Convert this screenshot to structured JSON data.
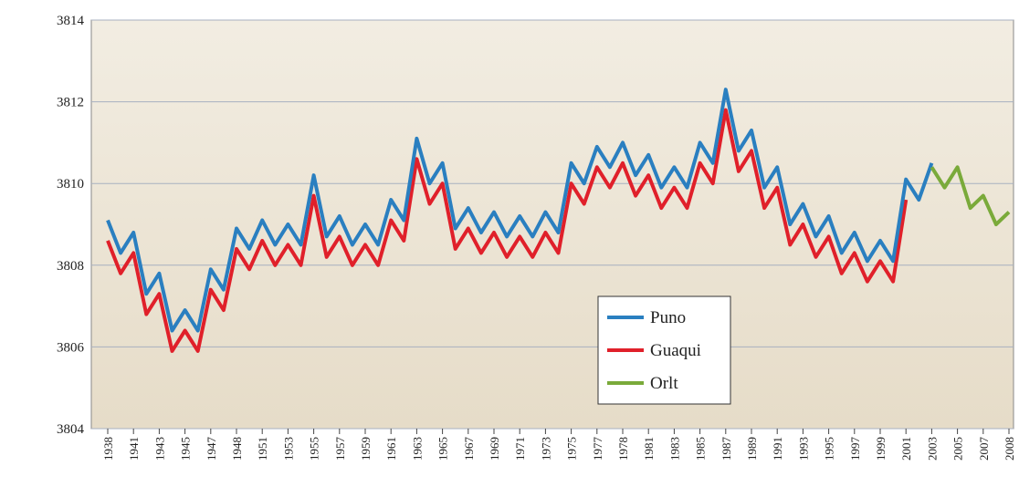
{
  "chart_data": {
    "type": "line",
    "categories": [
      "1938",
      null,
      "1941",
      null,
      "1943",
      null,
      "1945",
      null,
      "1947",
      null,
      "1948",
      null,
      "1951",
      null,
      "1953",
      null,
      "1955",
      null,
      "1957",
      null,
      "1959",
      null,
      "1961",
      null,
      "1963",
      null,
      "1965",
      null,
      "1967",
      null,
      "1969",
      null,
      "1971",
      null,
      "1973",
      null,
      "1975",
      null,
      "1977",
      null,
      "1978",
      null,
      "1981",
      null,
      "1983",
      null,
      "1985",
      null,
      "1987",
      null,
      "1989",
      null,
      "1991",
      null,
      "1993",
      null,
      "1995",
      null,
      "1997",
      null,
      "1999",
      null,
      "2001",
      null,
      "2003",
      null,
      "2005",
      null,
      "2007",
      null,
      "2008"
    ],
    "series": [
      {
        "name": "Puno",
        "color": "#2a7fc0",
        "values": [
          3809.1,
          3808.3,
          3808.8,
          3807.3,
          3807.8,
          3806.4,
          3806.9,
          3806.4,
          3807.9,
          3807.4,
          3808.9,
          3808.4,
          3809.1,
          3808.5,
          3809.0,
          3808.5,
          3810.2,
          3808.7,
          3809.2,
          3808.5,
          3809.0,
          3808.5,
          3809.6,
          3809.1,
          3811.1,
          3810.0,
          3810.5,
          3808.9,
          3809.4,
          3808.8,
          3809.3,
          3808.7,
          3809.2,
          3808.7,
          3809.3,
          3808.8,
          3810.5,
          3810.0,
          3810.9,
          3810.4,
          3811.0,
          3810.2,
          3810.7,
          3809.9,
          3810.4,
          3809.9,
          3811.0,
          3810.5,
          3812.3,
          3810.8,
          3811.3,
          3809.9,
          3810.4,
          3809.0,
          3809.5,
          3808.7,
          3809.2,
          3808.3,
          3808.8,
          3808.1,
          3808.6,
          3808.1,
          3810.1,
          3809.6,
          3810.5,
          null,
          null,
          null,
          null,
          null,
          null
        ]
      },
      {
        "name": "Guaqui",
        "color": "#e0202a",
        "values": [
          3808.6,
          3807.8,
          3808.3,
          3806.8,
          3807.3,
          3805.9,
          3806.4,
          3805.9,
          3807.4,
          3806.9,
          3808.4,
          3807.9,
          3808.6,
          3808.0,
          3808.5,
          3808.0,
          3809.7,
          3808.2,
          3808.7,
          3808.0,
          3808.5,
          3808.0,
          3809.1,
          3808.6,
          3810.6,
          3809.5,
          3810.0,
          3808.4,
          3808.9,
          3808.3,
          3808.8,
          3808.2,
          3808.7,
          3808.2,
          3808.8,
          3808.3,
          3810.0,
          3809.5,
          3810.4,
          3809.9,
          3810.5,
          3809.7,
          3810.2,
          3809.4,
          3809.9,
          3809.4,
          3810.5,
          3810.0,
          3811.8,
          3810.3,
          3810.8,
          3809.4,
          3809.9,
          3808.5,
          3809.0,
          3808.2,
          3808.7,
          3807.8,
          3808.3,
          3807.6,
          3808.1,
          3807.6,
          3809.6,
          null,
          null,
          null,
          null,
          null,
          null,
          null,
          null
        ]
      },
      {
        "name": "Orlt",
        "color": "#7aaa3a",
        "values": [
          null,
          null,
          null,
          null,
          null,
          null,
          null,
          null,
          null,
          null,
          null,
          null,
          null,
          null,
          null,
          null,
          null,
          null,
          null,
          null,
          null,
          null,
          null,
          null,
          null,
          null,
          null,
          null,
          null,
          null,
          null,
          null,
          null,
          null,
          null,
          null,
          null,
          null,
          null,
          null,
          null,
          null,
          null,
          null,
          null,
          null,
          null,
          null,
          null,
          null,
          null,
          null,
          null,
          null,
          null,
          null,
          null,
          null,
          null,
          null,
          null,
          null,
          null,
          null,
          3810.4,
          3809.9,
          3810.4,
          3809.4,
          3809.7,
          3809.0,
          3809.3
        ]
      }
    ],
    "ylim": [
      3804,
      3814
    ],
    "yticks": [
      3804,
      3806,
      3808,
      3810,
      3812,
      3814
    ],
    "grid": true
  }
}
